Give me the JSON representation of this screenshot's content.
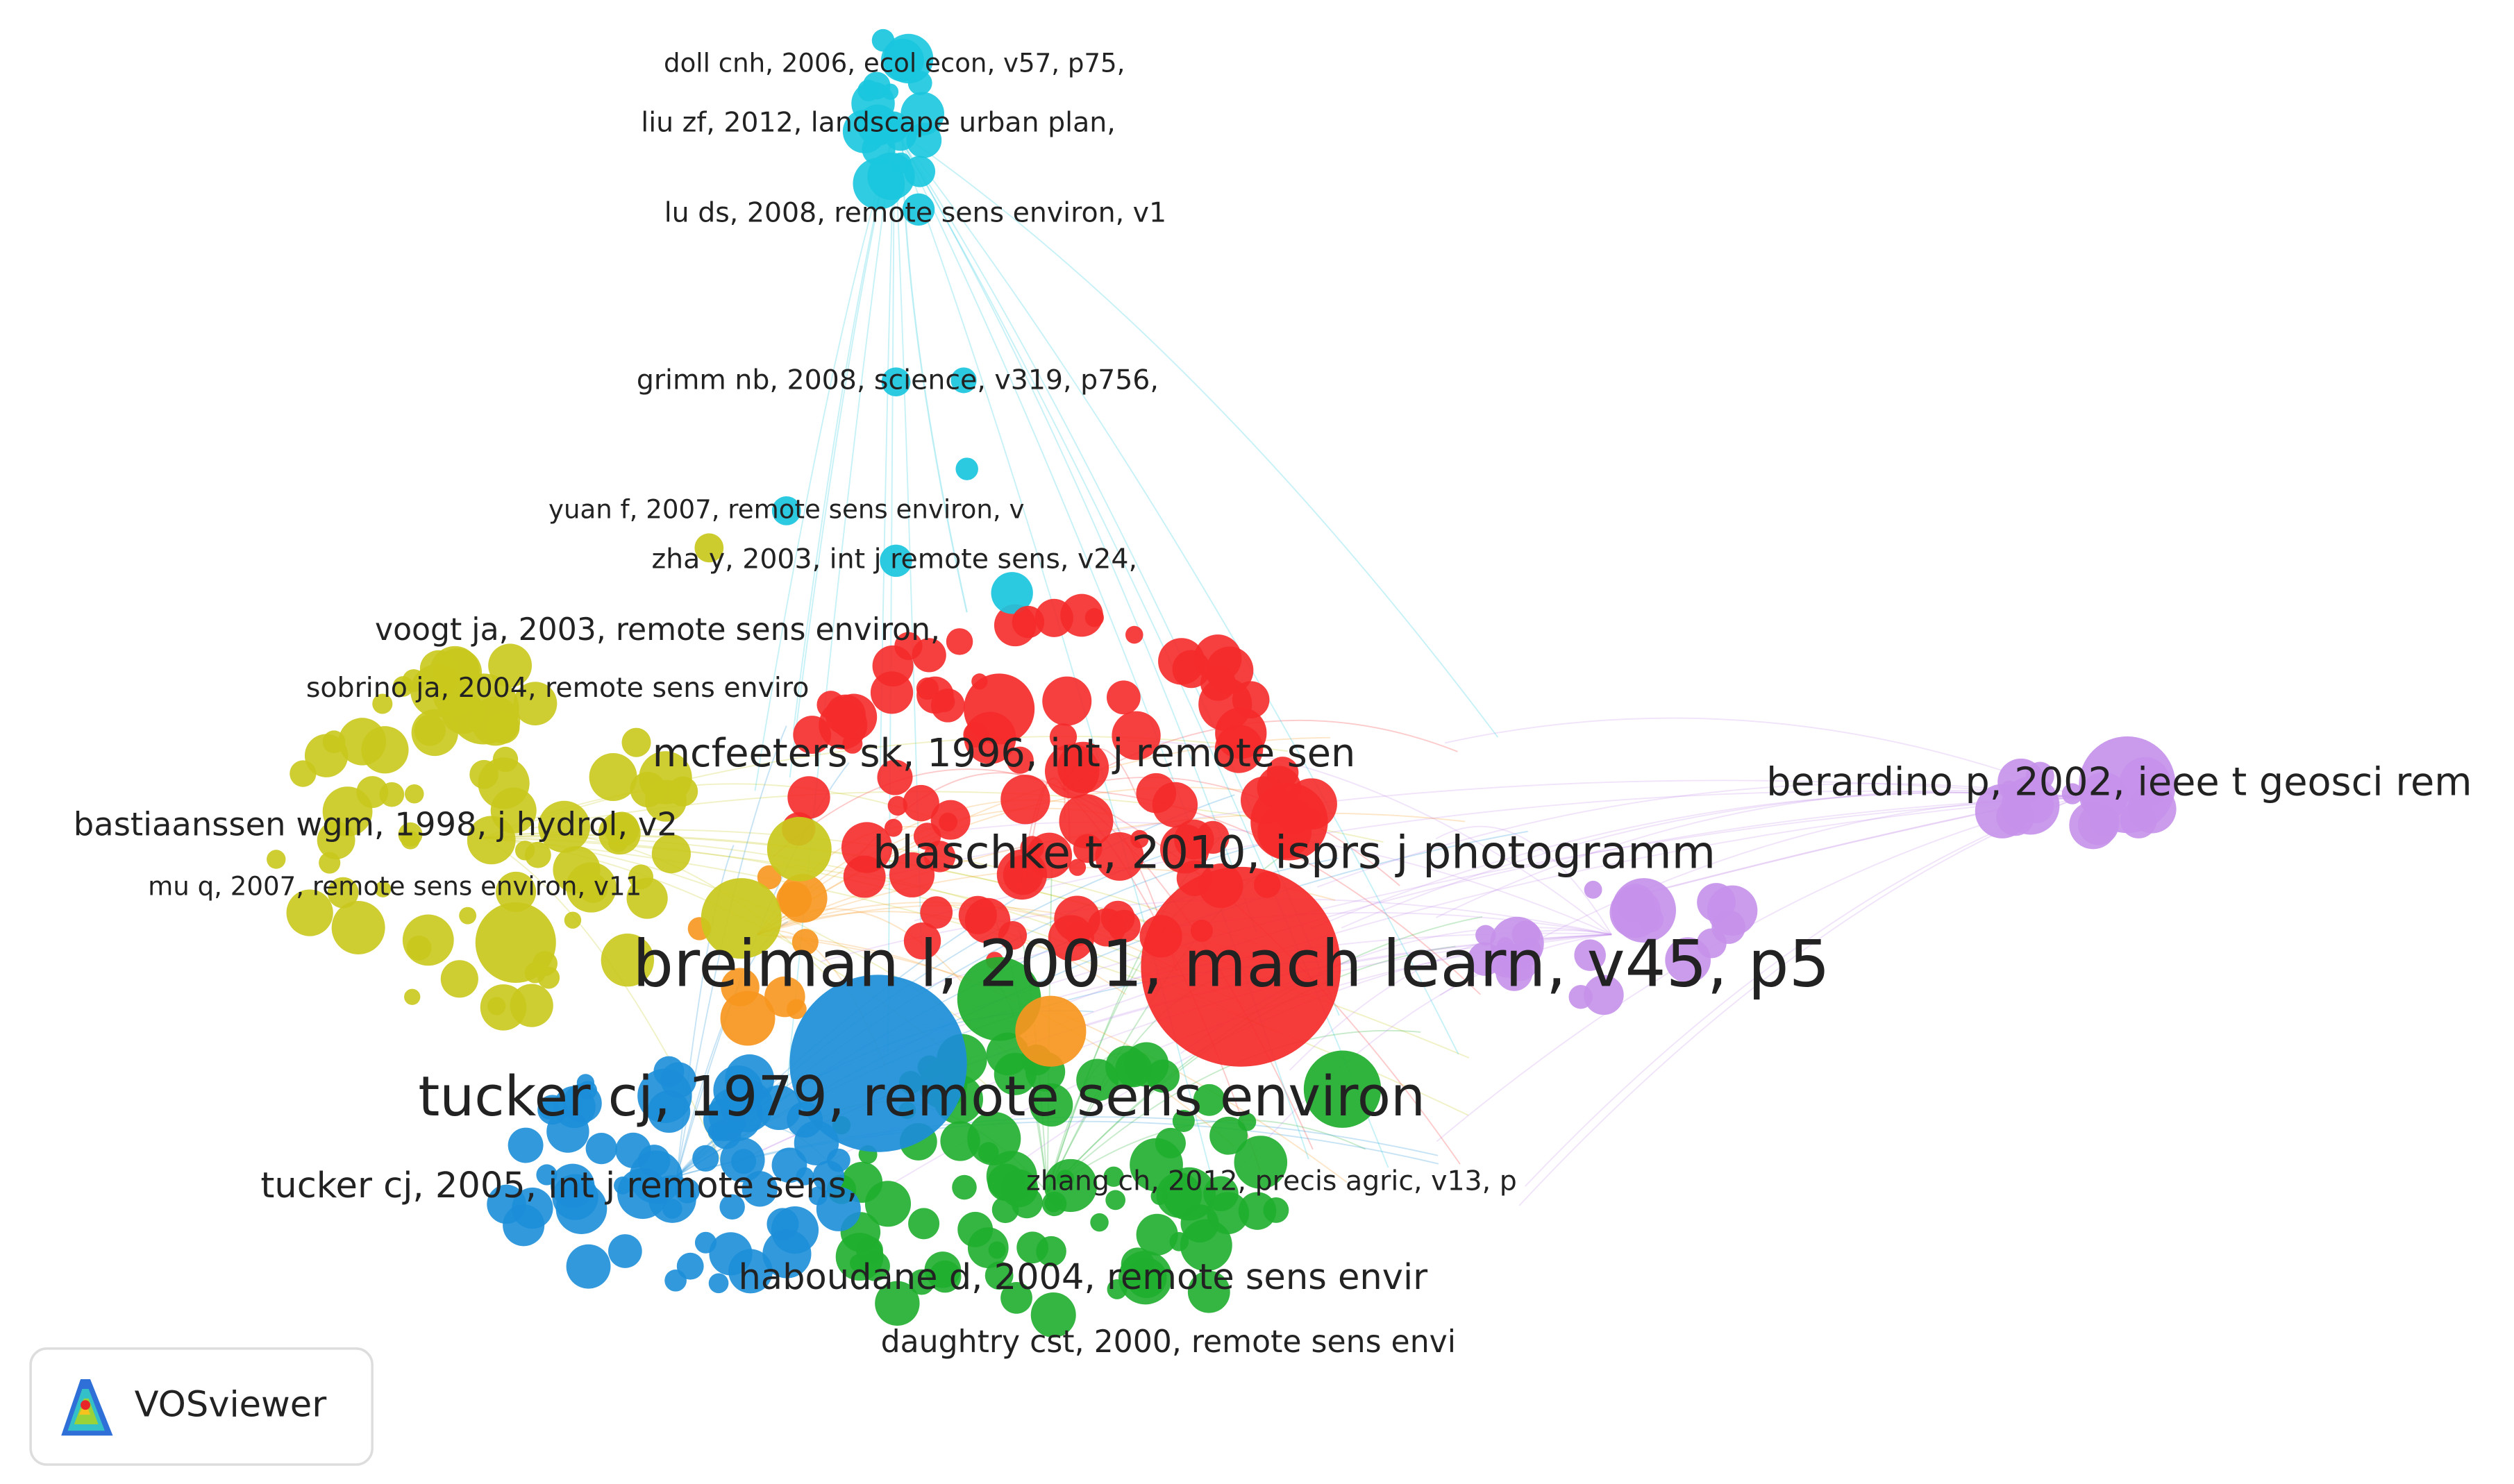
{
  "nodes": [
    {
      "label": "doll cnh, 2006, ecol econ, v57, p75,"
    },
    {
      "label": "liu zf, 2012, landscape urban plan,"
    },
    {
      "label": "lu ds, 2008, remote sens environ, v1"
    },
    {
      "label": "grimm nb, 2008, science, v319, p756,"
    },
    {
      "label": "yuan f, 2007, remote sens environ, v"
    },
    {
      "label": "zha y, 2003, int j remote sens, v24,"
    },
    {
      "label": "voogt ja, 2003, remote sens environ,"
    },
    {
      "label": "sobrino ja, 2004, remote sens enviro"
    },
    {
      "label": "mcfeeters sk, 1996, int j remote sen"
    },
    {
      "label": "berardino p, 2002, ieee t geosci rem"
    },
    {
      "label": "bastiaanssen wgm, 1998, j hydrol, v2"
    },
    {
      "label": "blaschke t, 2010, isprs j photogramm"
    },
    {
      "label": "mu q, 2007, remote sens environ, v11"
    },
    {
      "label": "breiman l, 2001, mach learn, v45, p5"
    },
    {
      "label": "tucker cj, 1979, remote sens environ"
    },
    {
      "label": "tucker cj, 2005, int j remote sens,"
    },
    {
      "label": "zhang ch, 2012, precis agric, v13, p"
    },
    {
      "label": "haboudane d, 2004, remote sens envir"
    },
    {
      "label": "daughtry cst, 2000, remote sens envi"
    }
  ],
  "logo": {
    "text": "VOSviewer"
  }
}
